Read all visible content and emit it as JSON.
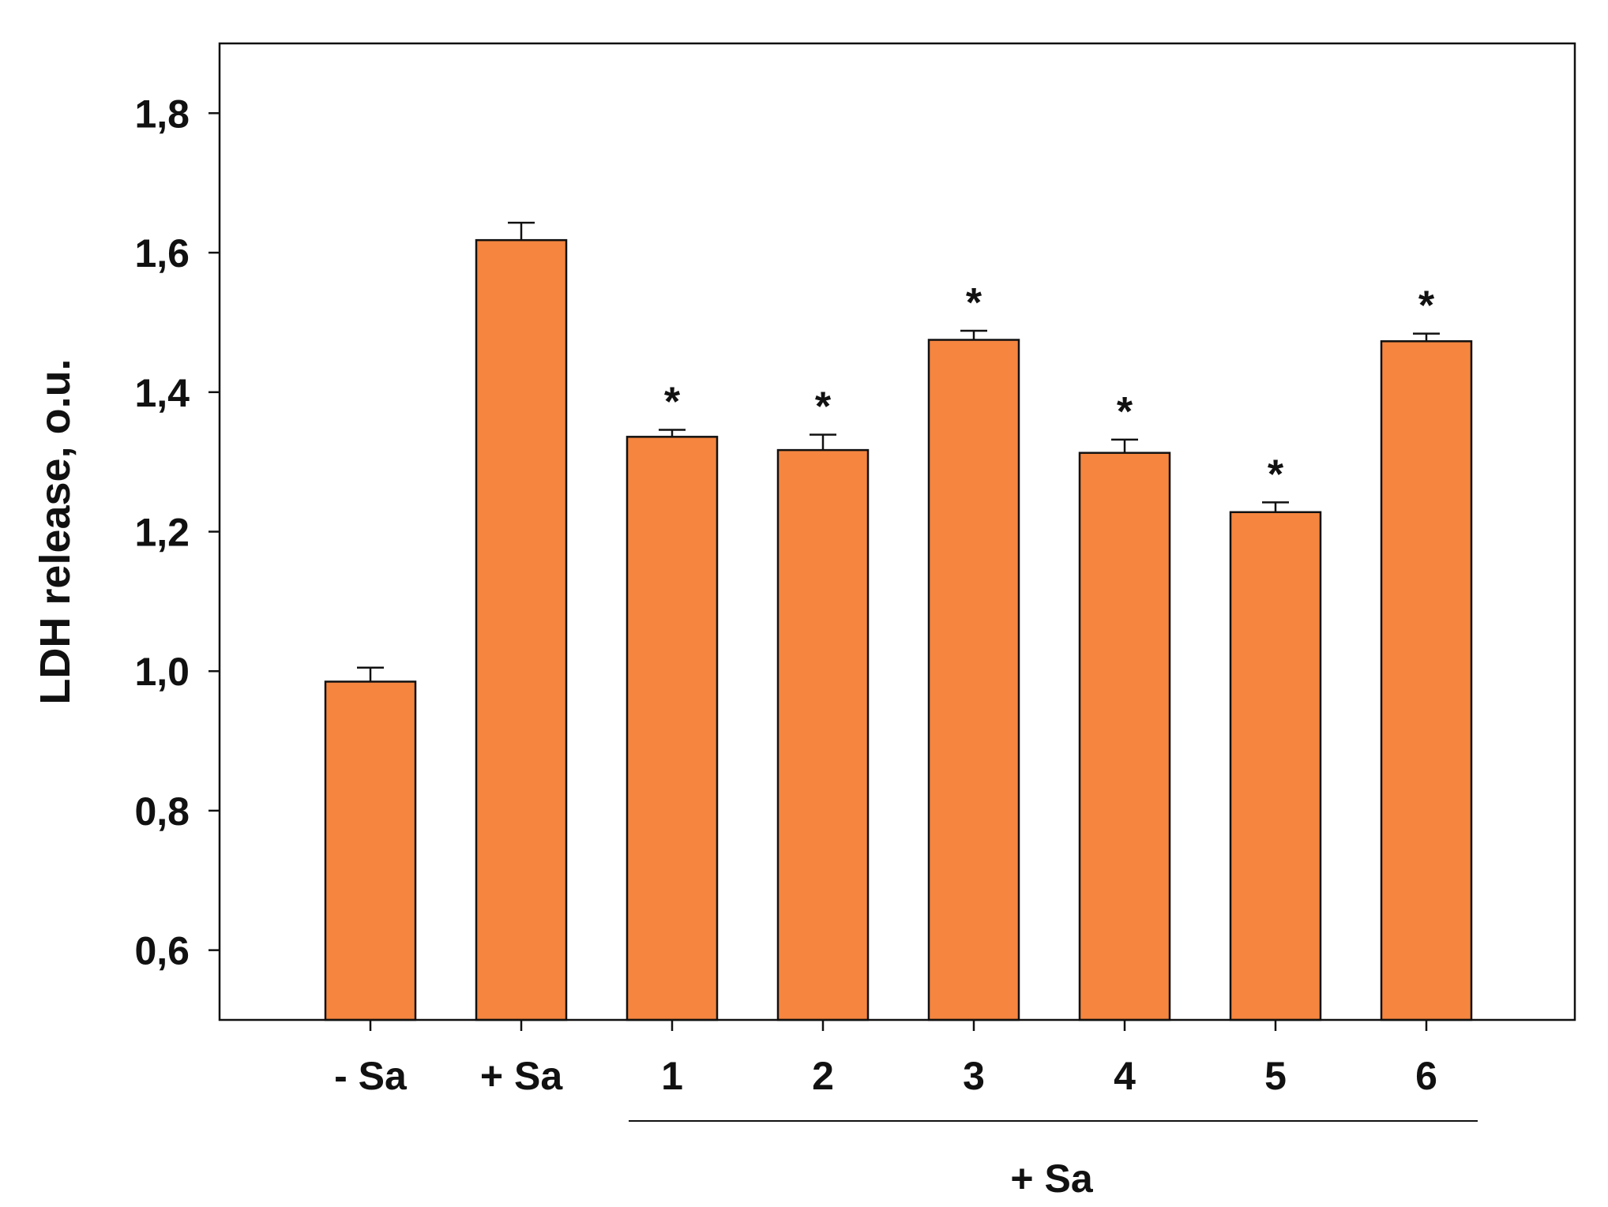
{
  "chart_data": {
    "type": "bar",
    "title": "",
    "xlabel": "",
    "ylabel": "LDH release, o.u.",
    "ylim": [
      0.5,
      1.9
    ],
    "yticks": [
      0.6,
      0.8,
      1.0,
      1.2,
      1.4,
      1.6,
      1.8
    ],
    "ytick_labels": [
      "0,6",
      "0,8",
      "1,0",
      "1,2",
      "1,4",
      "1,6",
      "1,8"
    ],
    "categories": [
      "- Sa",
      "+ Sa",
      "1",
      "2",
      "3",
      "4",
      "5",
      "6"
    ],
    "values": [
      0.985,
      1.618,
      1.336,
      1.317,
      1.475,
      1.313,
      1.228,
      1.473
    ],
    "errors": [
      0.02,
      0.025,
      0.01,
      0.022,
      0.013,
      0.019,
      0.014,
      0.011
    ],
    "significance": [
      "",
      "",
      "*",
      "*",
      "*",
      "*",
      "*",
      "*"
    ],
    "group_label": "+ Sa",
    "group_categories": [
      "1",
      "2",
      "3",
      "4",
      "5",
      "6"
    ],
    "bar_color": "#F5853F",
    "grid": false,
    "legend": "none"
  }
}
